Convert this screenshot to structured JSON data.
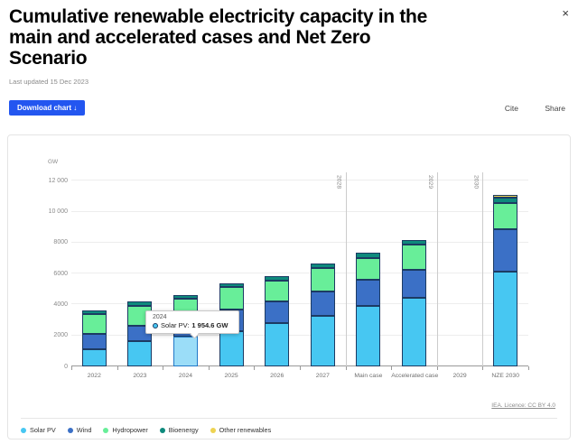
{
  "header": {
    "title": "Cumulative renewable electricity capacity in the main and accelerated cases and Net Zero Scenario",
    "last_updated": "Last updated 15 Dec 2023",
    "download_button": "Download chart ↓",
    "cite": "Cite",
    "share": "Share",
    "close": "×"
  },
  "chart": {
    "unit_label": "GW",
    "licence": "IEA. Licence: CC BY 4.0"
  },
  "chart_data": {
    "type": "bar",
    "stacked": true,
    "title": "Cumulative renewable electricity capacity in the main and accelerated cases and Net Zero Scenario",
    "ylabel": "GW",
    "ylim": [
      0,
      12000
    ],
    "grid": true,
    "legend_position": "bottom-left",
    "yticks": [
      {
        "value": 0,
        "label": "0"
      },
      {
        "value": 2000,
        "label": "2000"
      },
      {
        "value": 4000,
        "label": "4000"
      },
      {
        "value": 6000,
        "label": "6000"
      },
      {
        "value": 8000,
        "label": "8000"
      },
      {
        "value": 10000,
        "label": "10 000"
      },
      {
        "value": 12000,
        "label": "12 000"
      }
    ],
    "categories": [
      "2022",
      "2023",
      "2024",
      "2025",
      "2026",
      "2027",
      "Main case",
      "Accelerated case",
      "2029",
      "NZE 2030"
    ],
    "series": [
      {
        "name": "Solar PV",
        "color": "#47c7f2",
        "values": [
          1110,
          1615,
          1954.6,
          2270,
          2820,
          3270,
          3890,
          4430,
          0,
          6120
        ]
      },
      {
        "name": "Wind",
        "color": "#3b70c6",
        "values": [
          970,
          1010,
          1130,
          1380,
          1400,
          1590,
          1690,
          1830,
          0,
          2760
        ]
      },
      {
        "name": "Hydropower",
        "color": "#68ee99",
        "values": [
          1285,
          1280,
          1270,
          1460,
          1340,
          1500,
          1435,
          1615,
          0,
          1655
        ]
      },
      {
        "name": "Bioenergy",
        "color": "#0e8a7c",
        "values": [
          265,
          275,
          255,
          270,
          270,
          290,
          315,
          290,
          0,
          350
        ]
      },
      {
        "name": "Other renewables",
        "color": "#eed352",
        "values": [
          0,
          0,
          0,
          0,
          0,
          0,
          0,
          0,
          0,
          195
        ]
      }
    ],
    "highlight": {
      "category": "2024",
      "series": "Solar PV",
      "fill": "#9bddf8",
      "border": "#2178c8"
    },
    "reference_lines": [
      {
        "label": "2028",
        "after_category_index": 5
      },
      {
        "label": "2029",
        "after_category_index": 7
      },
      {
        "label": "2030",
        "after_category_index": 8
      }
    ],
    "tooltip": {
      "title": "2024",
      "series_label": "Solar PV:",
      "value": "1 954.6 GW"
    }
  }
}
